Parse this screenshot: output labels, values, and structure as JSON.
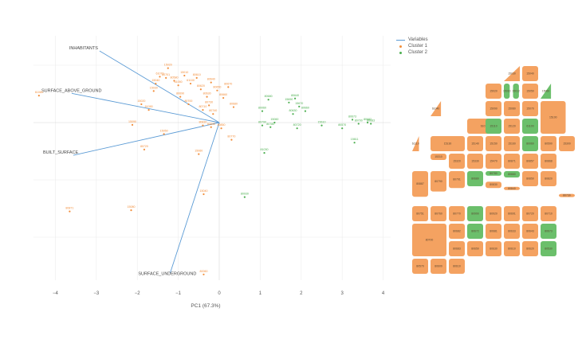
{
  "chart_data": {
    "type": "scatter",
    "subtype": "pca-biplot",
    "title": "",
    "xlabel": "PC1 (67.3%)",
    "ylabel": "",
    "xlim": [
      -4.2,
      4.1
    ],
    "ylim": [
      -2.9,
      1.6
    ],
    "x_ticks": [
      -4,
      -3,
      -2,
      -1,
      0,
      1,
      2,
      3,
      4
    ],
    "x_tick_labels": [
      "−4",
      "−3",
      "−2",
      "−1",
      "0",
      "1",
      "2",
      "3",
      "4"
    ],
    "grid": true,
    "legend": {
      "position": "top-right",
      "entries": [
        {
          "label": "Variables",
          "type": "line",
          "color": "#5b9bd5"
        },
        {
          "label": "Cluster 1",
          "type": "point",
          "color": "#f28e3b"
        },
        {
          "label": "Cluster 2",
          "type": "point",
          "color": "#4caf50"
        }
      ]
    },
    "colors": {
      "variables": "#5b9bd5",
      "cluster1": "#f28e3b",
      "cluster2": "#4caf50",
      "grid": "#ececec",
      "zero_line": "#d8d8d8"
    },
    "variables": [
      {
        "name": "INHABITANTS",
        "x": -2.92,
        "y": 1.25
      },
      {
        "name": "SURFACE_ABOVE_GROUND",
        "x": -3.6,
        "y": 0.51
      },
      {
        "name": "BUILT_SURFACE",
        "x": -3.56,
        "y": -0.57
      },
      {
        "name": "SURFACE_UNDERGROUND",
        "x": -1.2,
        "y": -2.63
      }
    ],
    "series": [
      {
        "name": "Cluster 1",
        "points": [
          {
            "label": "61080",
            "x": -4.4,
            "y": 0.47
          },
          {
            "label": "80871",
            "x": -3.65,
            "y": -1.55
          },
          {
            "label": "15080",
            "x": -2.15,
            "y": -1.53
          },
          {
            "label": "15090",
            "x": -2.12,
            "y": -0.04
          },
          {
            "label": "15020",
            "x": -1.9,
            "y": 0.32
          },
          {
            "label": "61090",
            "x": -1.72,
            "y": 0.22
          },
          {
            "label": "80720",
            "x": -1.83,
            "y": -0.47
          },
          {
            "label": "15050",
            "x": -1.35,
            "y": -0.2
          },
          {
            "label": "15030",
            "x": -1.6,
            "y": 0.55
          },
          {
            "label": "15040",
            "x": -1.55,
            "y": 0.68
          },
          {
            "label": "61070",
            "x": -1.45,
            "y": 0.8
          },
          {
            "label": "15020",
            "x": -1.25,
            "y": 0.95
          },
          {
            "label": "80701",
            "x": -1.3,
            "y": 0.78
          },
          {
            "label": "80580",
            "x": -1.1,
            "y": 0.73
          },
          {
            "label": "61050",
            "x": -1.0,
            "y": 0.65
          },
          {
            "label": "15010",
            "x": -0.85,
            "y": 0.82
          },
          {
            "label": "61100",
            "x": -0.7,
            "y": 0.68
          },
          {
            "label": "80610",
            "x": -0.55,
            "y": 0.78
          },
          {
            "label": "80620",
            "x": -0.45,
            "y": 0.58
          },
          {
            "label": "80630",
            "x": -0.3,
            "y": 0.45
          },
          {
            "label": "80640",
            "x": -0.2,
            "y": 0.7
          },
          {
            "label": "80650",
            "x": -0.05,
            "y": 0.56
          },
          {
            "label": "80660",
            "x": 0.1,
            "y": 0.43
          },
          {
            "label": "80670",
            "x": 0.22,
            "y": 0.62
          },
          {
            "label": "80680",
            "x": 0.35,
            "y": 0.27
          },
          {
            "label": "80690",
            "x": -0.95,
            "y": 0.45
          },
          {
            "label": "80700",
            "x": -0.75,
            "y": 0.32
          },
          {
            "label": "80710",
            "x": -0.4,
            "y": 0.22
          },
          {
            "label": "80730",
            "x": -0.25,
            "y": 0.3
          },
          {
            "label": "80740",
            "x": -0.15,
            "y": 0.15
          },
          {
            "label": "80830",
            "x": -0.4,
            "y": -0.05
          },
          {
            "label": "80840",
            "x": -0.2,
            "y": -0.08
          },
          {
            "label": "80850",
            "x": 0.05,
            "y": -0.1
          },
          {
            "label": "80770",
            "x": 0.3,
            "y": -0.3
          },
          {
            "label": "15060",
            "x": -0.5,
            "y": -0.55
          },
          {
            "label": "15040",
            "x": -0.38,
            "y": -1.25
          },
          {
            "label": "80060",
            "x": -0.38,
            "y": -2.65
          }
        ]
      },
      {
        "name": "Cluster 2",
        "points": [
          {
            "label": "80060",
            "x": 1.05,
            "y": 0.2
          },
          {
            "label": "80680",
            "x": 1.2,
            "y": 0.4
          },
          {
            "label": "80790",
            "x": 1.05,
            "y": -0.05
          },
          {
            "label": "15060",
            "x": 1.35,
            "y": 0.0
          },
          {
            "label": "80780",
            "x": 1.25,
            "y": -0.08
          },
          {
            "label": "81030",
            "x": 1.1,
            "y": -0.53
          },
          {
            "label": "15690",
            "x": 1.7,
            "y": 0.35
          },
          {
            "label": "80640",
            "x": 1.85,
            "y": 0.42
          },
          {
            "label": "80630",
            "x": 1.8,
            "y": 0.15
          },
          {
            "label": "15670",
            "x": 1.95,
            "y": 0.28
          },
          {
            "label": "80660",
            "x": 2.1,
            "y": 0.2
          },
          {
            "label": "80720",
            "x": 1.9,
            "y": -0.1
          },
          {
            "label": "15610",
            "x": 2.5,
            "y": -0.05
          },
          {
            "label": "80673",
            "x": 3.25,
            "y": 0.05
          },
          {
            "label": "80570",
            "x": 3.0,
            "y": -0.1
          },
          {
            "label": "80700",
            "x": 3.4,
            "y": -0.02
          },
          {
            "label": "80682",
            "x": 3.62,
            "y": 0.0
          },
          {
            "label": "80683",
            "x": 3.7,
            "y": -0.02
          },
          {
            "label": "15611",
            "x": 3.3,
            "y": -0.35
          },
          {
            "label": "80930",
            "x": 0.62,
            "y": -1.3
          }
        ]
      }
    ]
  },
  "map": {
    "colors": {
      "cluster1": "#f4a261",
      "cluster2": "#6bbf6b"
    },
    "blocks": [
      {
        "label": "15040",
        "cluster": 1
      },
      {
        "label": "15030",
        "cluster": 1
      },
      {
        "label": "15020",
        "cluster": 1
      },
      {
        "label": "15010",
        "cluster": 2
      },
      {
        "label": "15012",
        "cluster": 2
      },
      {
        "label": "15050",
        "cluster": 1
      },
      {
        "label": "15060",
        "cluster": 2
      },
      {
        "label": "15090",
        "cluster": 1
      },
      {
        "label": "15080",
        "cluster": 1
      },
      {
        "label": "15070",
        "cluster": 1
      },
      {
        "label": "15100",
        "cluster": 1
      },
      {
        "label": "61040",
        "cluster": 1
      },
      {
        "label": "61030",
        "cluster": 1
      },
      {
        "label": "15110",
        "cluster": 2
      },
      {
        "label": "15120",
        "cluster": 1
      },
      {
        "label": "61100",
        "cluster": 2
      },
      {
        "label": "61110",
        "cluster": 1
      },
      {
        "label": "15130",
        "cluster": 1
      },
      {
        "label": "15140",
        "cluster": 1
      },
      {
        "label": "15150",
        "cluster": 1
      },
      {
        "label": "15160",
        "cluster": 1
      },
      {
        "label": "80060",
        "cluster": 2
      },
      {
        "label": "80590",
        "cluster": 1
      },
      {
        "label": "15300",
        "cluster": 1
      },
      {
        "label": "15310",
        "cluster": 1
      },
      {
        "label": "15320",
        "cluster": 1
      },
      {
        "label": "15330",
        "cluster": 1
      },
      {
        "label": "15470",
        "cluster": 1
      },
      {
        "label": "80871",
        "cluster": 1
      },
      {
        "label": "80857",
        "cluster": 1
      },
      {
        "label": "80868",
        "cluster": 1
      },
      {
        "label": "80887",
        "cluster": 1
      },
      {
        "label": "80790",
        "cluster": 1
      },
      {
        "label": "80791",
        "cluster": 1
      },
      {
        "label": "80680",
        "cluster": 2
      },
      {
        "label": "80780",
        "cluster": 2
      },
      {
        "label": "80660",
        "cluster": 2
      },
      {
        "label": "80850",
        "cluster": 1
      },
      {
        "label": "80820",
        "cluster": 1
      },
      {
        "label": "80830",
        "cluster": 1
      },
      {
        "label": "80840",
        "cluster": 1
      },
      {
        "label": "80730",
        "cluster": 1
      },
      {
        "label": "80751",
        "cluster": 1
      },
      {
        "label": "80760",
        "cluster": 1
      },
      {
        "label": "80770",
        "cluster": 1
      },
      {
        "label": "80990",
        "cluster": 2
      },
      {
        "label": "80920",
        "cluster": 1
      },
      {
        "label": "80691",
        "cluster": 1
      },
      {
        "label": "80720",
        "cluster": 1
      },
      {
        "label": "80710",
        "cluster": 1
      },
      {
        "label": "80700",
        "cluster": 1
      },
      {
        "label": "80682",
        "cluster": 1
      },
      {
        "label": "80672",
        "cluster": 2
      },
      {
        "label": "80681",
        "cluster": 1
      },
      {
        "label": "80633",
        "cluster": 1
      },
      {
        "label": "80643",
        "cluster": 1
      },
      {
        "label": "80673",
        "cluster": 2
      },
      {
        "label": "80683",
        "cluster": 1
      },
      {
        "label": "80650",
        "cluster": 1
      },
      {
        "label": "80630",
        "cluster": 1
      },
      {
        "label": "80610",
        "cluster": 1
      },
      {
        "label": "80620",
        "cluster": 1
      },
      {
        "label": "80530",
        "cluster": 2
      },
      {
        "label": "80570",
        "cluster": 1
      },
      {
        "label": "80600",
        "cluster": 1
      },
      {
        "label": "80610",
        "cluster": 1
      }
    ]
  }
}
